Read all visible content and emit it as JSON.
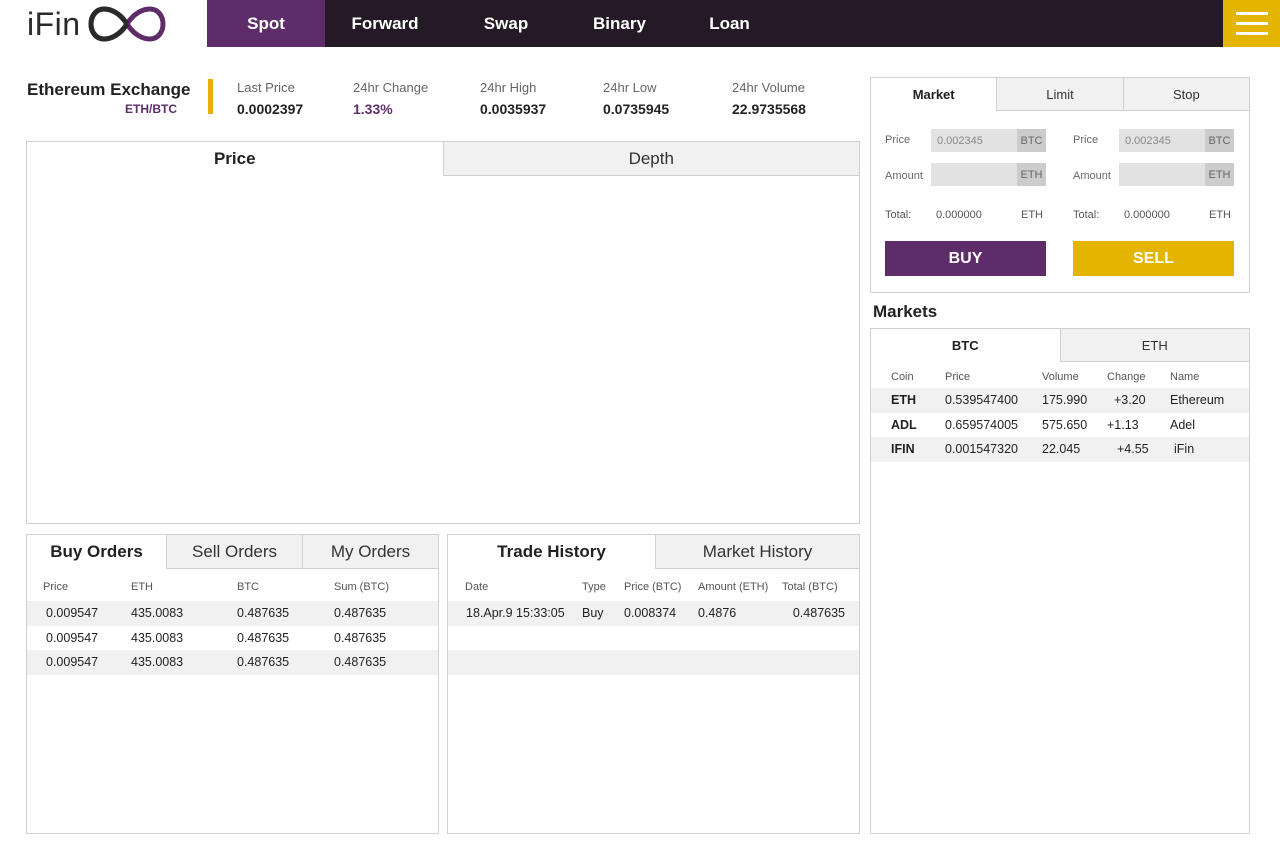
{
  "logo": {
    "text": "iFin"
  },
  "nav": {
    "items": [
      {
        "label": "Spot",
        "active": true
      },
      {
        "label": "Forward"
      },
      {
        "label": "Swap"
      },
      {
        "label": "Binary"
      },
      {
        "label": "Loan"
      }
    ]
  },
  "exchange": {
    "title": "Ethereum Exchange",
    "pair": "ETH/BTC",
    "stats": [
      {
        "label": "Last Price",
        "value": "0.0002397"
      },
      {
        "label": "24hr Change",
        "value": "1.33%"
      },
      {
        "label": "24hr High",
        "value": "0.0035937"
      },
      {
        "label": "24hr Low",
        "value": "0.0735945"
      },
      {
        "label": "24hr Volume",
        "value": "22.9735568"
      }
    ]
  },
  "chart_panel": {
    "tabs": [
      "Price",
      "Depth"
    ]
  },
  "orders": {
    "tabs": [
      "Buy Orders",
      "Sell Orders",
      "My Orders"
    ],
    "columns": [
      "Price",
      "ETH",
      "BTC",
      "Sum (BTC)"
    ],
    "rows": [
      [
        "0.009547",
        "435.0083",
        "0.487635",
        "0.487635"
      ],
      [
        "0.009547",
        "435.0083",
        "0.487635",
        "0.487635"
      ],
      [
        "0.009547",
        "435.0083",
        "0.487635",
        "0.487635"
      ]
    ]
  },
  "history": {
    "tabs": [
      "Trade History",
      "Market History"
    ],
    "columns": [
      "Date",
      "Type",
      "Price (BTC)",
      "Amount (ETH)",
      "Total (BTC)"
    ],
    "rows": [
      [
        "18.Apr.9 15:33:05",
        "Buy",
        "0.008374",
        "0.4876",
        "0.487635"
      ]
    ]
  },
  "order_form": {
    "tabs": [
      "Market",
      "Limit",
      "Stop"
    ],
    "buy": {
      "price_label": "Price",
      "price_value": "0.002345",
      "price_unit": "BTC",
      "amount_label": "Amount",
      "amount_unit": "ETH",
      "total_label": "Total:",
      "total_value": "0.000000",
      "total_unit": "ETH",
      "button": "BUY"
    },
    "sell": {
      "price_label": "Price",
      "price_value": "0.002345",
      "price_unit": "BTC",
      "amount_label": "Amount",
      "amount_unit": "ETH",
      "total_label": "Total:",
      "total_value": "0.000000",
      "total_unit": "ETH",
      "button": "SELL"
    }
  },
  "markets": {
    "title": "Markets",
    "tabs": [
      "BTC",
      "ETH"
    ],
    "columns": [
      "Coin",
      "Price",
      "Volume",
      "Change",
      "Name"
    ],
    "rows": [
      [
        "ETH",
        "0.539547400",
        "175.990",
        "+3.20",
        "Ethereum"
      ],
      [
        "ADL",
        "0.659574005",
        "575.650",
        "+1.13",
        "Adel"
      ],
      [
        "IFIN",
        "0.001547320",
        "22.045",
        "+4.55",
        "iFin"
      ]
    ]
  },
  "colors": {
    "purple": "#5e2d69",
    "gold": "#e3b400",
    "nav_bg": "#231a25"
  }
}
